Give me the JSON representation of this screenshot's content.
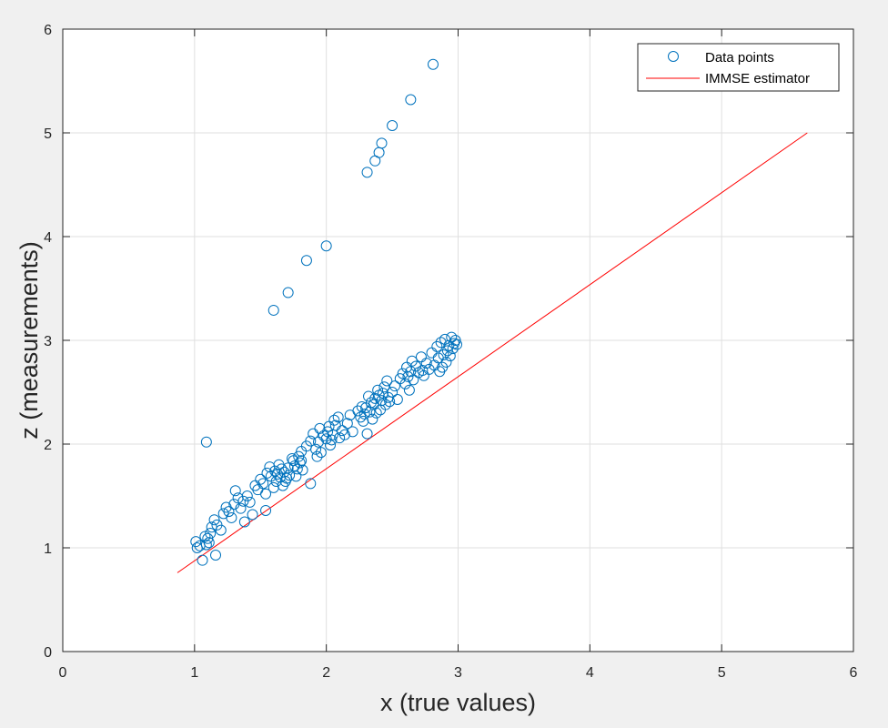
{
  "chart_data": {
    "type": "scatter",
    "xlabel": "x (true values)",
    "ylabel": "z (measurements)",
    "xlim": [
      0,
      6
    ],
    "ylim": [
      0,
      6
    ],
    "xticks": [
      "0",
      "1",
      "2",
      "3",
      "4",
      "5",
      "6"
    ],
    "yticks": [
      "0",
      "1",
      "2",
      "3",
      "4",
      "5",
      "6"
    ],
    "grid": true,
    "legend_position": "top-right",
    "colors": {
      "points": "#0072BD",
      "line": "#FF0000",
      "background": "#F0F0F0",
      "plot_area": "#FFFFFF"
    },
    "series": [
      {
        "name": "Data points",
        "kind": "scatter",
        "marker": "circle-open",
        "x": [
          1.01,
          1.02,
          1.04,
          1.06,
          1.08,
          1.09,
          1.1,
          1.11,
          1.12,
          1.13,
          1.15,
          1.17,
          1.2,
          1.22,
          1.24,
          1.26,
          1.28,
          1.3,
          1.31,
          1.33,
          1.35,
          1.37,
          1.38,
          1.4,
          1.42,
          1.44,
          1.46,
          1.48,
          1.5,
          1.52,
          1.54,
          1.55,
          1.57,
          1.58,
          1.6,
          1.61,
          1.62,
          1.63,
          1.64,
          1.65,
          1.66,
          1.67,
          1.68,
          1.69,
          1.7,
          1.71,
          1.72,
          1.74,
          1.75,
          1.76,
          1.77,
          1.78,
          1.79,
          1.8,
          1.81,
          1.82,
          1.85,
          1.88,
          1.9,
          1.92,
          1.93,
          1.94,
          1.95,
          1.96,
          1.98,
          2.0,
          2.01,
          2.02,
          2.03,
          2.04,
          2.05,
          2.06,
          2.07,
          2.09,
          2.1,
          2.12,
          2.14,
          2.16,
          2.18,
          2.2,
          2.24,
          2.26,
          2.27,
          2.28,
          2.29,
          2.3,
          2.31,
          2.32,
          2.33,
          2.34,
          2.35,
          2.36,
          2.37,
          2.38,
          2.39,
          2.4,
          2.41,
          2.42,
          2.43,
          2.44,
          2.45,
          2.46,
          2.47,
          2.48,
          2.5,
          2.52,
          2.54,
          2.56,
          2.58,
          2.6,
          2.61,
          2.62,
          2.63,
          2.64,
          2.65,
          2.66,
          2.68,
          2.7,
          2.72,
          2.73,
          2.74,
          2.76,
          2.78,
          2.8,
          2.82,
          2.84,
          2.85,
          2.86,
          2.87,
          2.88,
          2.89,
          2.9,
          2.91,
          2.92,
          2.93,
          2.94,
          2.95,
          2.96,
          2.97,
          2.98,
          2.99,
          1.09,
          1.16,
          1.54,
          1.81,
          1.88,
          1.6,
          1.71,
          1.85,
          2.0,
          2.31,
          2.37,
          2.4,
          2.42,
          2.5,
          2.64,
          2.81
        ],
        "y": [
          1.06,
          1.0,
          1.02,
          0.88,
          1.11,
          1.03,
          1.09,
          1.05,
          1.14,
          1.2,
          1.27,
          1.22,
          1.17,
          1.33,
          1.39,
          1.35,
          1.29,
          1.42,
          1.55,
          1.48,
          1.38,
          1.45,
          1.25,
          1.5,
          1.44,
          1.32,
          1.6,
          1.56,
          1.66,
          1.62,
          1.52,
          1.72,
          1.78,
          1.69,
          1.58,
          1.74,
          1.64,
          1.71,
          1.8,
          1.68,
          1.76,
          1.6,
          1.73,
          1.64,
          1.67,
          1.77,
          1.7,
          1.86,
          1.84,
          1.79,
          1.69,
          1.76,
          1.88,
          1.82,
          1.93,
          1.75,
          1.98,
          2.03,
          2.1,
          1.95,
          1.88,
          2.02,
          2.15,
          1.92,
          2.08,
          2.05,
          2.12,
          2.17,
          1.99,
          2.04,
          2.09,
          2.23,
          2.18,
          2.26,
          2.06,
          2.13,
          2.09,
          2.2,
          2.28,
          2.12,
          2.32,
          2.26,
          2.36,
          2.22,
          2.29,
          2.35,
          2.1,
          2.46,
          2.31,
          2.4,
          2.24,
          2.38,
          2.44,
          2.3,
          2.52,
          2.47,
          2.33,
          2.42,
          2.49,
          2.55,
          2.38,
          2.61,
          2.45,
          2.41,
          2.5,
          2.56,
          2.43,
          2.63,
          2.68,
          2.58,
          2.74,
          2.65,
          2.52,
          2.7,
          2.8,
          2.62,
          2.75,
          2.69,
          2.84,
          2.71,
          2.66,
          2.78,
          2.72,
          2.88,
          2.76,
          2.94,
          2.83,
          2.7,
          2.98,
          2.74,
          2.86,
          3.01,
          2.79,
          2.9,
          2.95,
          2.85,
          3.03,
          2.92,
          2.97,
          3.0,
          2.96,
          2.02,
          0.93,
          1.36,
          1.84,
          1.62,
          3.29,
          3.46,
          3.77,
          3.91,
          4.62,
          4.73,
          4.81,
          4.9,
          5.07,
          5.32,
          5.66
        ]
      },
      {
        "name": "IMMSE estimator",
        "kind": "line",
        "x": [
          0.87,
          5.65
        ],
        "y": [
          0.76,
          5.0
        ]
      }
    ]
  }
}
